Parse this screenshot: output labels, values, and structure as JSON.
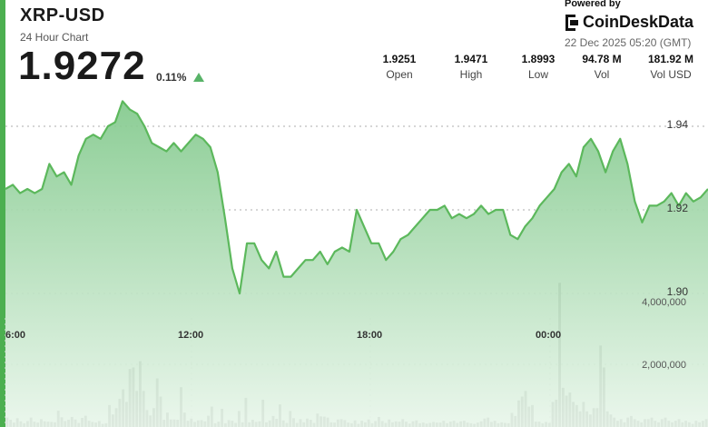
{
  "header": {
    "title": "XRP-USD",
    "subtitle": "24 Hour Chart",
    "price": "1.9272",
    "change": "0.11%"
  },
  "brand": {
    "powered_by": "Powered by",
    "name": "CoinDeskData",
    "timestamp": "22 Dec 2025 05:20 (GMT)"
  },
  "stats": [
    {
      "value": "1.9251",
      "label": "Open"
    },
    {
      "value": "1.9471",
      "label": "High"
    },
    {
      "value": "1.8993",
      "label": "Low"
    },
    {
      "value": "94.78 M",
      "label": "Vol"
    },
    {
      "value": "181.92 M",
      "label": "Vol USD"
    }
  ],
  "colors": {
    "accent": "#4caf50",
    "line": "#5cb85c",
    "area_top": "#82c98c",
    "area_bottom": "#e9f6eb",
    "volume": "#4a4a4a"
  },
  "chart_data": [
    {
      "type": "area",
      "series": [
        {
          "x_hours": [
            5.5,
            5.75,
            6.0,
            6.25,
            6.5,
            6.75,
            7.0,
            7.25,
            7.5,
            7.75,
            8.0,
            8.25,
            8.5,
            8.75,
            9.0,
            9.25,
            9.5,
            9.75,
            10.0,
            10.25,
            10.5,
            10.75,
            11.0,
            11.25,
            11.5,
            11.75,
            12.0,
            12.25,
            12.5,
            12.75,
            13.0,
            13.25,
            13.5,
            13.75,
            14.0,
            14.25,
            14.5,
            14.75,
            15.0,
            15.25,
            15.5,
            15.75,
            16.0,
            16.25,
            16.5,
            16.75,
            17.0,
            17.25,
            17.5,
            17.75,
            18.0,
            18.25,
            18.5,
            18.75,
            19.0,
            19.25,
            19.5,
            19.75,
            20.0,
            20.25,
            20.5,
            20.75,
            21.0,
            21.25,
            21.5,
            21.75,
            22.0,
            22.25,
            22.5,
            22.75,
            23.0,
            23.25,
            23.5,
            23.75,
            24.0,
            24.25,
            24.5,
            24.75,
            25.0,
            25.25,
            25.5,
            25.75,
            26.0,
            26.25,
            26.5,
            26.75,
            27.0,
            27.25,
            27.5,
            27.75,
            28.0,
            28.25,
            28.5,
            28.75,
            29.0,
            29.25,
            29.5
          ],
          "values": [
            1.925,
            1.926,
            1.924,
            1.925,
            1.924,
            1.925,
            1.931,
            1.928,
            1.929,
            1.926,
            1.933,
            1.937,
            1.938,
            1.937,
            1.94,
            1.941,
            1.946,
            1.944,
            1.943,
            1.94,
            1.936,
            1.935,
            1.934,
            1.936,
            1.934,
            1.936,
            1.938,
            1.937,
            1.935,
            1.929,
            1.918,
            1.906,
            1.9,
            1.912,
            1.912,
            1.908,
            1.906,
            1.91,
            1.904,
            1.904,
            1.906,
            1.908,
            1.908,
            1.91,
            1.907,
            1.91,
            1.911,
            1.91,
            1.92,
            1.916,
            1.912,
            1.912,
            1.908,
            1.91,
            1.913,
            1.914,
            1.916,
            1.918,
            1.92,
            1.92,
            1.921,
            1.918,
            1.919,
            1.918,
            1.919,
            1.921,
            1.919,
            1.92,
            1.92,
            1.914,
            1.913,
            1.916,
            1.918,
            1.921,
            1.923,
            1.925,
            1.929,
            1.931,
            1.928,
            1.935,
            1.937,
            1.934,
            1.929,
            1.934,
            1.937,
            1.931,
            1.922,
            1.917,
            1.921,
            1.921,
            1.922,
            1.924,
            1.921,
            1.924,
            1.922,
            1.923,
            1.925
          ]
        }
      ],
      "y_tick_labels": [
        "1.94",
        "1.92",
        "1.90"
      ],
      "x_tick_labels": [
        "6:00",
        "12:00",
        "18:00",
        "00:00"
      ]
    },
    {
      "type": "bar",
      "series": [
        {
          "values": [
            300000,
            230000,
            140000,
            280000,
            180000,
            120000,
            190000,
            300000,
            170000,
            140000,
            250000,
            180000,
            170000,
            160000,
            150000,
            520000,
            310000,
            190000,
            230000,
            320000,
            240000,
            130000,
            290000,
            360000,
            200000,
            160000,
            140000,
            190000,
            100000,
            120000,
            700000,
            400000,
            600000,
            900000,
            1200000,
            800000,
            1850000,
            1900000,
            1150000,
            2100000,
            1150000,
            540000,
            370000,
            600000,
            1550000,
            970000,
            230000,
            460000,
            240000,
            240000,
            230000,
            1270000,
            460000,
            200000,
            270000,
            160000,
            210000,
            220000,
            180000,
            360000,
            650000,
            120000,
            170000,
            580000,
            120000,
            220000,
            200000,
            130000,
            510000,
            150000,
            930000,
            150000,
            230000,
            160000,
            180000,
            870000,
            150000,
            210000,
            350000,
            260000,
            720000,
            210000,
            130000,
            510000,
            280000,
            130000,
            250000,
            150000,
            270000,
            230000,
            130000,
            430000,
            340000,
            330000,
            300000,
            150000,
            140000,
            240000,
            250000,
            220000,
            140000,
            120000,
            210000,
            100000,
            200000,
            150000,
            240000,
            120000,
            190000,
            320000,
            190000,
            130000,
            240000,
            150000,
            180000,
            170000,
            250000,
            170000,
            110000,
            180000,
            210000,
            120000,
            140000,
            110000,
            130000,
            160000,
            140000,
            140000,
            200000,
            120000,
            170000,
            200000,
            130000,
            180000,
            200000,
            140000,
            120000,
            100000,
            140000,
            180000,
            270000,
            300000,
            160000,
            200000,
            120000,
            150000,
            130000,
            120000,
            450000,
            350000,
            850000,
            970000,
            1150000,
            650000,
            700000,
            170000,
            170000,
            120000,
            160000,
            130000,
            800000,
            870000,
            4600000,
            1250000,
            1000000,
            1100000,
            800000,
            700000,
            500000,
            800000,
            500000,
            400000,
            600000,
            600000,
            2600000,
            1900000,
            500000,
            400000,
            300000,
            200000,
            250000,
            150000,
            300000,
            350000,
            250000,
            200000,
            150000,
            250000,
            250000,
            300000,
            200000,
            150000,
            250000,
            300000,
            200000,
            150000,
            200000,
            250000,
            150000,
            200000,
            150000,
            100000,
            200000,
            150000,
            200000,
            250000
          ]
        }
      ],
      "y_tick_labels": [
        "4,000,000",
        "2,000,000"
      ]
    }
  ]
}
